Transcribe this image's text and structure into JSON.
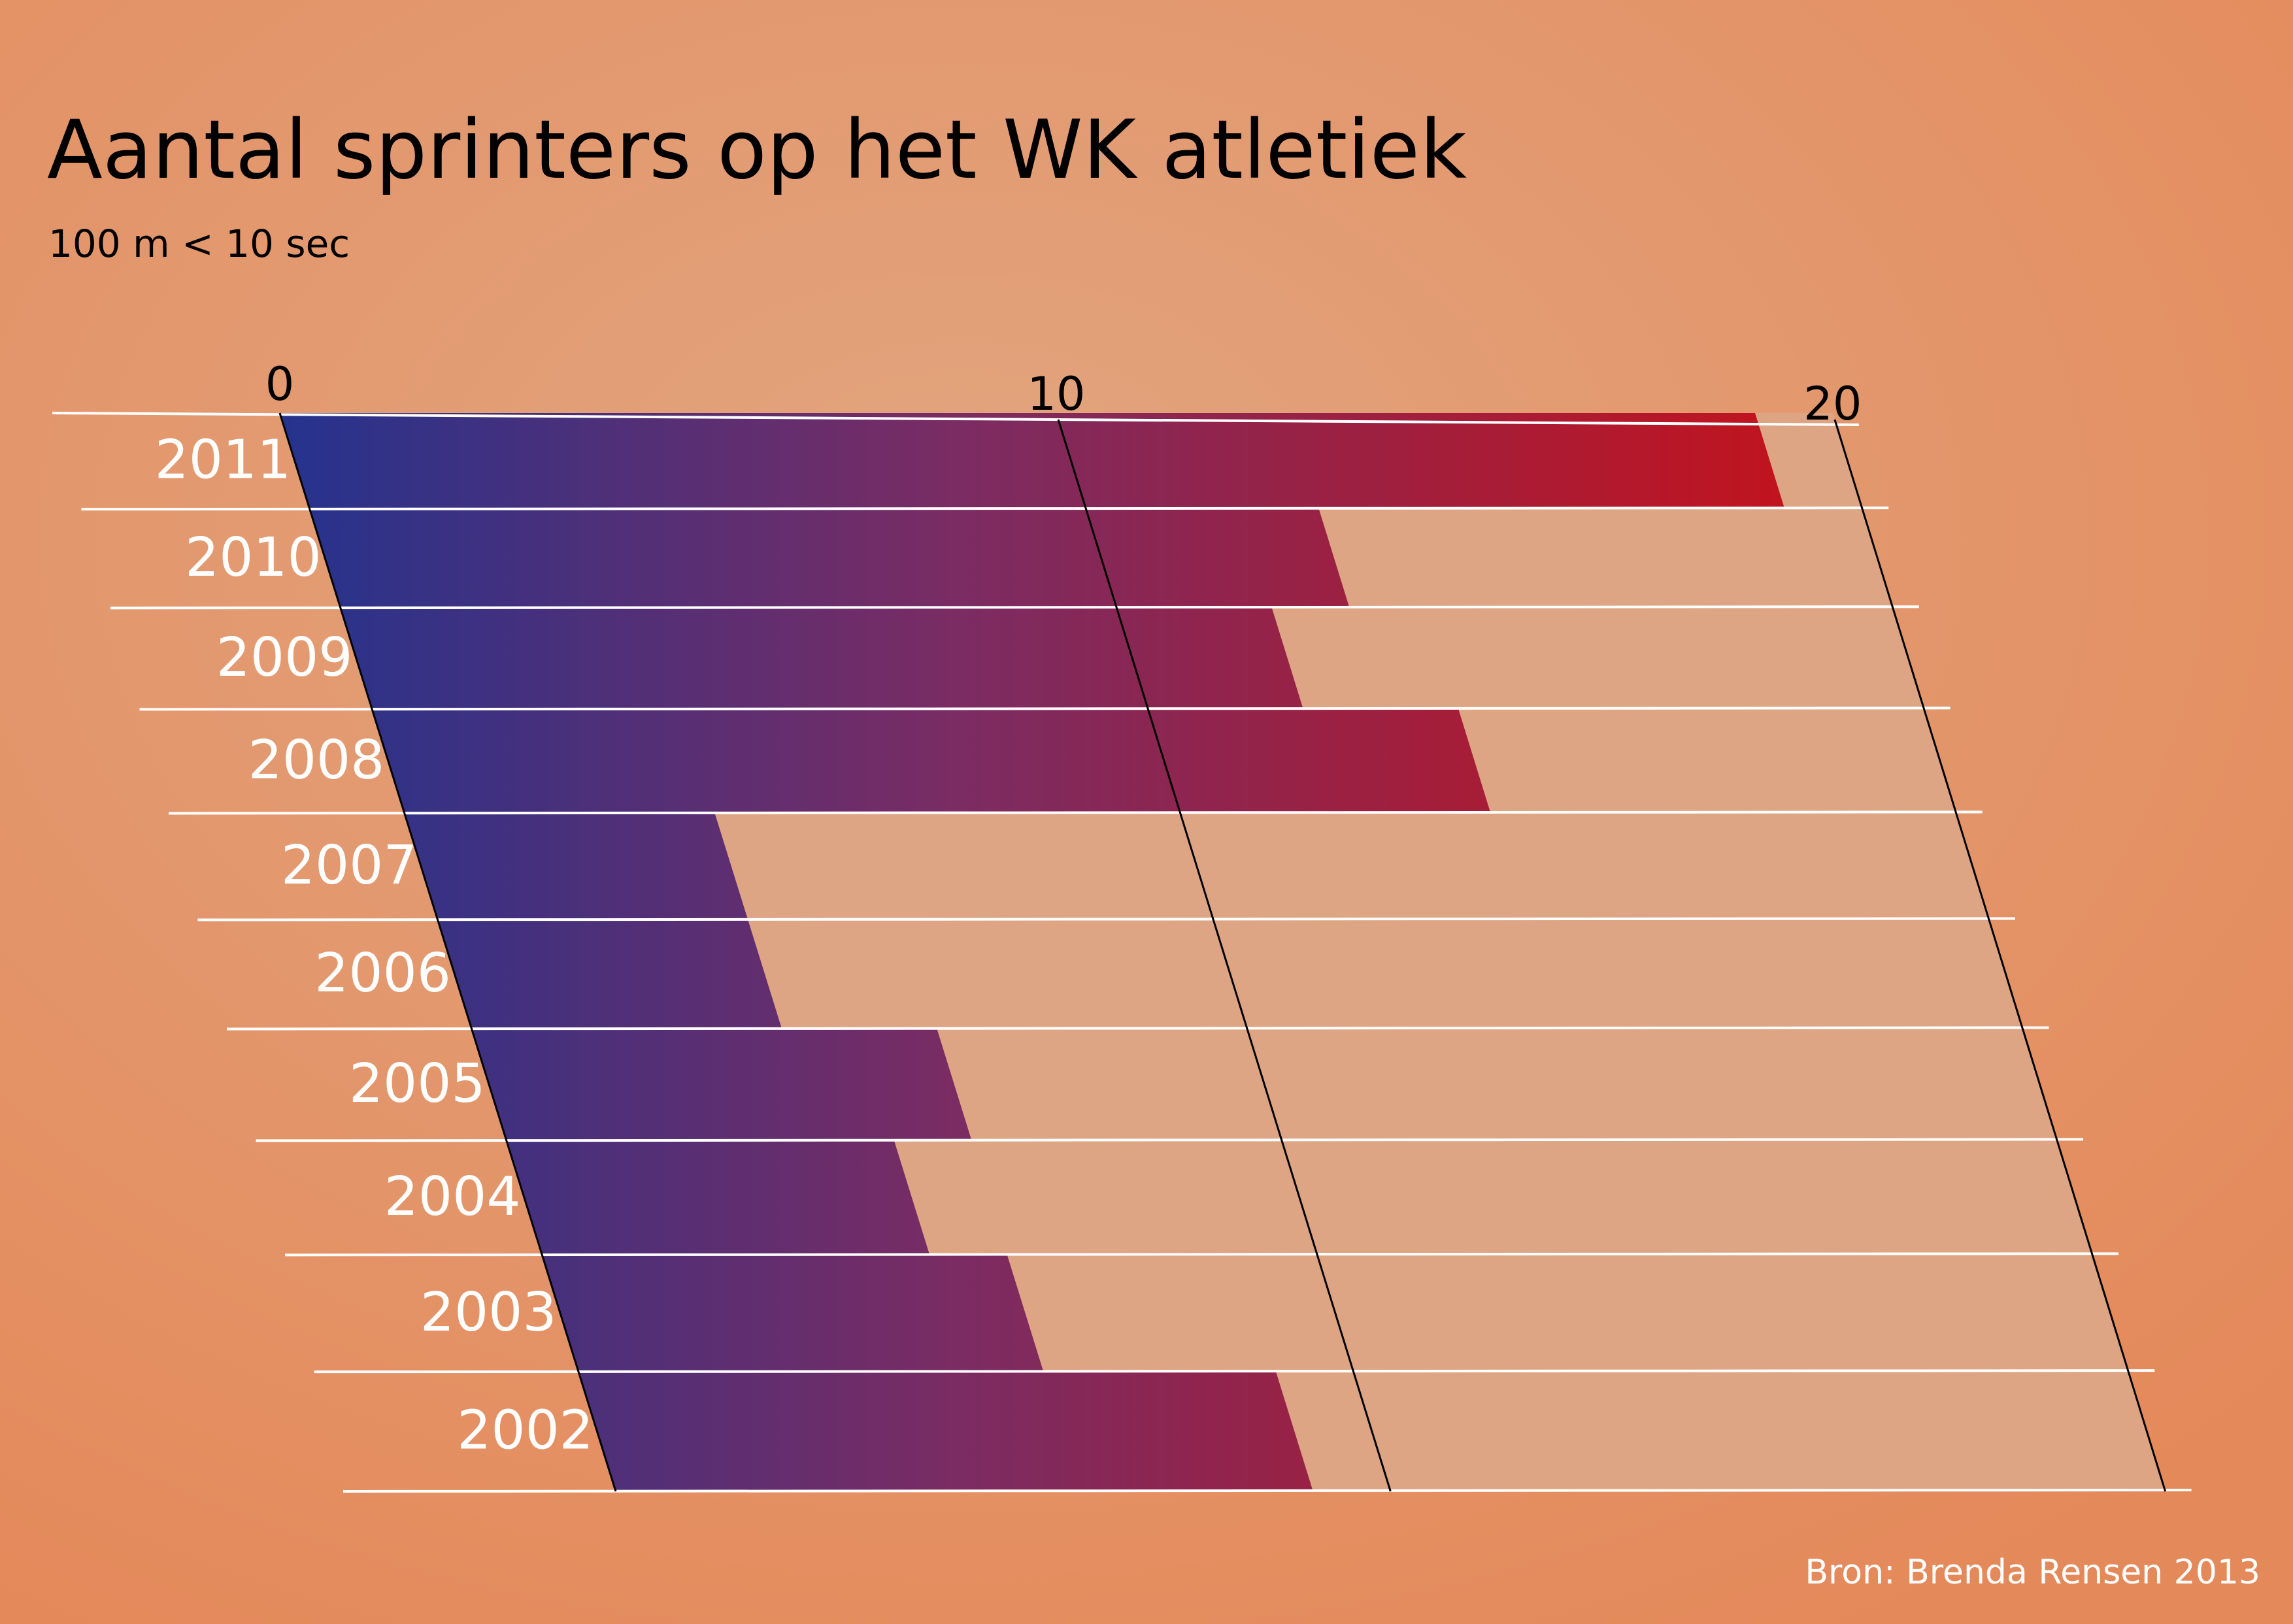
{
  "colors": {
    "background_center": "#e2a57f",
    "background_edge": "#e4895a",
    "track": "#dea584",
    "bar_start": "#24338e",
    "bar_mid": "#7a2c63",
    "bar_end": "#c0141f",
    "gridline": "#ffffff",
    "axis_line": "#000000",
    "title_text": "#000000",
    "label_text": "#ffffff"
  },
  "chart_data": {
    "type": "bar",
    "orientation": "horizontal",
    "title": "Aantal sprinters op het WK atletiek",
    "subtitle": "100 m < 10 sec",
    "source": "Bron: Brenda Rensen 2013",
    "categories": [
      "2011",
      "2010",
      "2009",
      "2008",
      "2007",
      "2006",
      "2005",
      "2004",
      "2003",
      "2002"
    ],
    "values": [
      19,
      13,
      12,
      14,
      4,
      4,
      6,
      5,
      6,
      9
    ],
    "xlim": [
      0,
      20
    ],
    "xticks": [
      {
        "value": 0,
        "label": "0"
      },
      {
        "value": 10,
        "label": "10"
      },
      {
        "value": 20,
        "label": "20"
      }
    ],
    "grid": true,
    "style": "slanted perspective bars with blue-to-red gradient"
  }
}
